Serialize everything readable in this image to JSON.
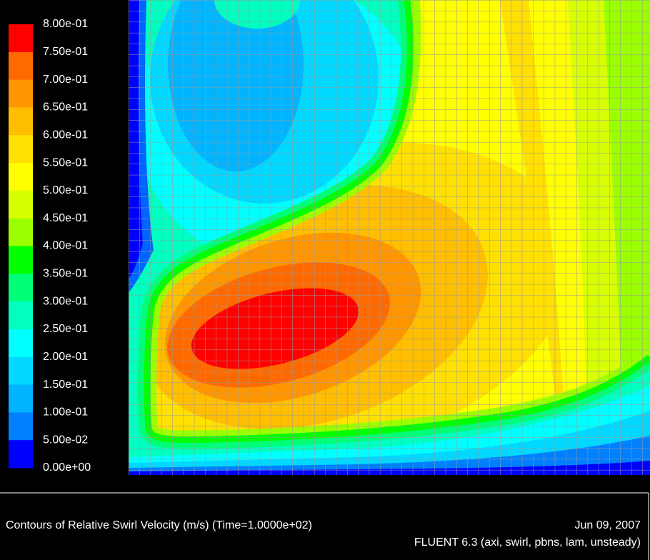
{
  "legend": {
    "levels": [
      "8.00e-01",
      "7.50e-01",
      "7.00e-01",
      "6.50e-01",
      "6.00e-01",
      "5.50e-01",
      "5.00e-01",
      "4.50e-01",
      "4.00e-01",
      "3.50e-01",
      "3.00e-01",
      "2.50e-01",
      "2.00e-01",
      "1.50e-01",
      "1.00e-01",
      "5.00e-02",
      "0.00e+00"
    ],
    "band_colors": [
      "#ff0000",
      "#ff6a00",
      "#ff9600",
      "#ffbe00",
      "#ffe000",
      "#ffff00",
      "#d8ff00",
      "#9cff00",
      "#00ff00",
      "#00ff78",
      "#00ffc0",
      "#00ffff",
      "#00d8ff",
      "#00b4ff",
      "#0080ff",
      "#0000ff"
    ]
  },
  "footer": {
    "title": "Contours of Relative Swirl Velocity (m/s)  (Time=1.0000e+02)",
    "date": "Jun 09, 2007",
    "solver": "FLUENT 6.3 (axi, swirl, pbns, lam, unsteady)"
  }
}
